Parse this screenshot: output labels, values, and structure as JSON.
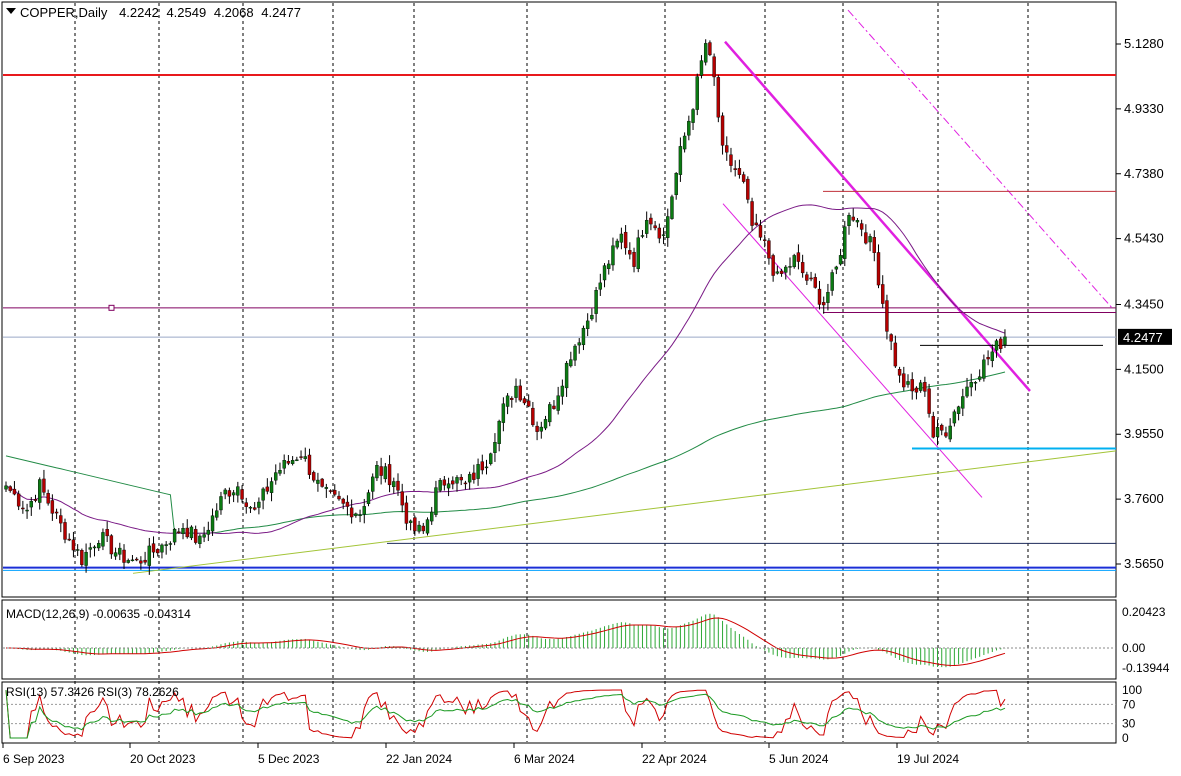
{
  "chart_data": {
    "type": "candlestick",
    "symbol": "COPPER",
    "timeframe": "Daily",
    "ohlc_header": {
      "open": "4.2242",
      "high": "4.2549",
      "low": "4.2068",
      "close": "4.2477"
    },
    "last_price": "4.2477",
    "y_ticks": [
      "5.1280",
      "4.9330",
      "4.7380",
      "4.5430",
      "4.3450",
      "4.1500",
      "3.9550",
      "3.7600",
      "3.5650"
    ],
    "ylim": [
      3.52,
      5.16
    ],
    "x_tick_labels": [
      "6 Sep 2023",
      "20 Oct 2023",
      "5 Dec 2023",
      "22 Jan 2024",
      "6 Mar 2024",
      "22 Apr 2024",
      "5 Jun 2024",
      "19 Jul 2024"
    ],
    "price_path_anchors": [
      {
        "bar": 0,
        "price": 3.8
      },
      {
        "bar": 5,
        "price": 3.73
      },
      {
        "bar": 8,
        "price": 3.8
      },
      {
        "bar": 13,
        "price": 3.68
      },
      {
        "bar": 18,
        "price": 3.58
      },
      {
        "bar": 22,
        "price": 3.65
      },
      {
        "bar": 27,
        "price": 3.59
      },
      {
        "bar": 31,
        "price": 3.57
      },
      {
        "bar": 37,
        "price": 3.62
      },
      {
        "bar": 42,
        "price": 3.68
      },
      {
        "bar": 46,
        "price": 3.63
      },
      {
        "bar": 52,
        "price": 3.78
      },
      {
        "bar": 55,
        "price": 3.8
      },
      {
        "bar": 59,
        "price": 3.72
      },
      {
        "bar": 64,
        "price": 3.84
      },
      {
        "bar": 70,
        "price": 3.9
      },
      {
        "bar": 75,
        "price": 3.78
      },
      {
        "bar": 80,
        "price": 3.74
      },
      {
        "bar": 84,
        "price": 3.72
      },
      {
        "bar": 88,
        "price": 3.85
      },
      {
        "bar": 92,
        "price": 3.82
      },
      {
        "bar": 96,
        "price": 3.67
      },
      {
        "bar": 99,
        "price": 3.66
      },
      {
        "bar": 102,
        "price": 3.78
      },
      {
        "bar": 105,
        "price": 3.83
      },
      {
        "bar": 109,
        "price": 3.8
      },
      {
        "bar": 114,
        "price": 3.88
      },
      {
        "bar": 118,
        "price": 4.03
      },
      {
        "bar": 121,
        "price": 4.1
      },
      {
        "bar": 124,
        "price": 4.04
      },
      {
        "bar": 126,
        "price": 3.97
      },
      {
        "bar": 130,
        "price": 4.05
      },
      {
        "bar": 134,
        "price": 4.2
      },
      {
        "bar": 138,
        "price": 4.3
      },
      {
        "bar": 142,
        "price": 4.45
      },
      {
        "bar": 146,
        "price": 4.55
      },
      {
        "bar": 149,
        "price": 4.48
      },
      {
        "bar": 152,
        "price": 4.62
      },
      {
        "bar": 156,
        "price": 4.55
      },
      {
        "bar": 160,
        "price": 4.8
      },
      {
        "bar": 163,
        "price": 4.95
      },
      {
        "bar": 166,
        "price": 5.13
      },
      {
        "bar": 168,
        "price": 5.02
      },
      {
        "bar": 170,
        "price": 4.8
      },
      {
        "bar": 173,
        "price": 4.75
      },
      {
        "bar": 175,
        "price": 4.7
      },
      {
        "bar": 177,
        "price": 4.58
      },
      {
        "bar": 180,
        "price": 4.52
      },
      {
        "bar": 183,
        "price": 4.42
      },
      {
        "bar": 187,
        "price": 4.48
      },
      {
        "bar": 190,
        "price": 4.42
      },
      {
        "bar": 194,
        "price": 4.35
      },
      {
        "bar": 197,
        "price": 4.45
      },
      {
        "bar": 200,
        "price": 4.63
      },
      {
        "bar": 203,
        "price": 4.58
      },
      {
        "bar": 206,
        "price": 4.5
      },
      {
        "bar": 209,
        "price": 4.28
      },
      {
        "bar": 212,
        "price": 4.12
      },
      {
        "bar": 215,
        "price": 4.08
      },
      {
        "bar": 218,
        "price": 4.1
      },
      {
        "bar": 220,
        "price": 3.95
      },
      {
        "bar": 223,
        "price": 3.97
      },
      {
        "bar": 226,
        "price": 4.05
      },
      {
        "bar": 229,
        "price": 4.12
      },
      {
        "bar": 231,
        "price": 4.15
      },
      {
        "bar": 234,
        "price": 4.2
      },
      {
        "bar": 237,
        "price": 4.2477
      }
    ],
    "levels": [
      {
        "price": 5.035,
        "color": "#e8191c"
      },
      {
        "price": 4.335,
        "color": "#800060"
      },
      {
        "price": 4.247,
        "color": "#9aa9c8"
      },
      {
        "price": 3.554,
        "color": "#1a2fd6"
      },
      {
        "price": 3.546,
        "color": "#00a0ff"
      }
    ],
    "indicators": {
      "macd": {
        "label": "MACD(12,26,9) -0.00635 -0.04314",
        "ticks": [
          "0.20423",
          "0.00",
          "-0.13944"
        ]
      },
      "rsi": {
        "label": "RSI(13) 57.3426  RSI(3) 78.2626",
        "ticks": [
          "100",
          "70",
          "30",
          "0"
        ]
      }
    },
    "colors": {
      "bull": "#0b7a12",
      "bear": "#b50000",
      "grid": "#000000",
      "ma_slow": "#228b46",
      "ma_fast": "#7a1a86",
      "trend": "#e020e0",
      "support": "#00b0f0",
      "long_trend": "#a3c437"
    }
  }
}
